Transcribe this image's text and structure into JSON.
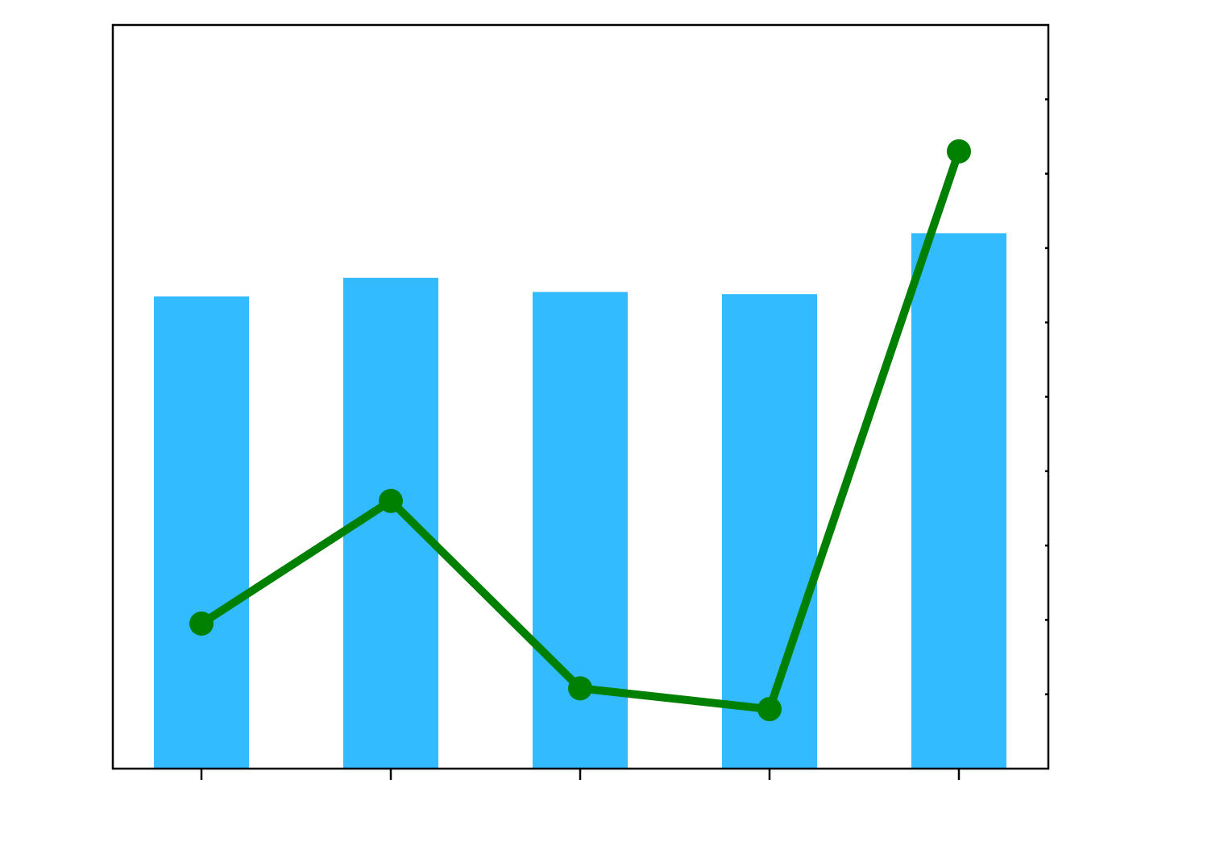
{
  "chart_data": {
    "type": "bar",
    "categories": [
      "",
      "",
      "",
      "",
      ""
    ],
    "bar_series": {
      "values": [
        63.5,
        66,
        64.1,
        63.8,
        72
      ],
      "color": "#33BBFF"
    },
    "line_series": {
      "values": [
        0.195,
        0.36,
        0.108,
        0.08,
        0.83
      ],
      "color": "#008000",
      "marker": "circle"
    },
    "left_ylim": [
      0,
      100
    ],
    "right_ylim": [
      0,
      1
    ],
    "grid": false,
    "legend": "none"
  }
}
